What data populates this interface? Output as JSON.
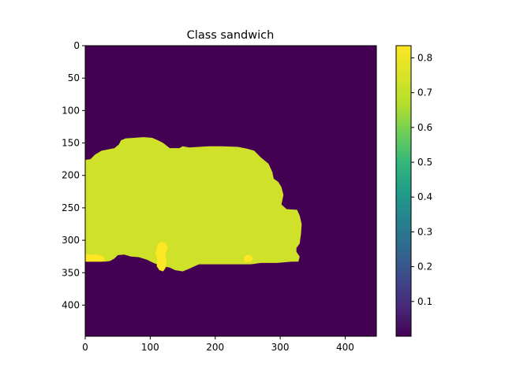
{
  "chart_data": {
    "type": "heatmap",
    "title": "Class sandwich",
    "xlabel": "",
    "ylabel": "",
    "x_range": [
      0,
      448
    ],
    "y_range": [
      0,
      448
    ],
    "y_inverted": true,
    "x_ticks": [
      0,
      100,
      200,
      300,
      400
    ],
    "y_ticks": [
      0,
      50,
      100,
      150,
      200,
      250,
      300,
      350,
      400
    ],
    "grid": false,
    "colormap": "viridis",
    "colorbar": {
      "range": [
        0.0,
        0.835
      ],
      "ticks": [
        0.1,
        0.2,
        0.3,
        0.4,
        0.5,
        0.6,
        0.7,
        0.8
      ],
      "tick_labels": [
        "0.1",
        "0.2",
        "0.3",
        "0.4",
        "0.5",
        "0.6",
        "0.7",
        "0.8"
      ]
    },
    "background_value": 0.0,
    "regions": [
      {
        "name": "sandwich-region",
        "value": 0.73,
        "polygon": [
          [
            0,
            176
          ],
          [
            8,
            175
          ],
          [
            15,
            168
          ],
          [
            25,
            162
          ],
          [
            35,
            160
          ],
          [
            45,
            158
          ],
          [
            52,
            152
          ],
          [
            55,
            146
          ],
          [
            62,
            143
          ],
          [
            75,
            142
          ],
          [
            90,
            141
          ],
          [
            103,
            142
          ],
          [
            112,
            146
          ],
          [
            120,
            150
          ],
          [
            130,
            158
          ],
          [
            145,
            158
          ],
          [
            150,
            155
          ],
          [
            160,
            157
          ],
          [
            175,
            156
          ],
          [
            190,
            155
          ],
          [
            210,
            155
          ],
          [
            235,
            156
          ],
          [
            250,
            159
          ],
          [
            260,
            162
          ],
          [
            270,
            172
          ],
          [
            282,
            182
          ],
          [
            288,
            195
          ],
          [
            290,
            205
          ],
          [
            297,
            210
          ],
          [
            302,
            218
          ],
          [
            305,
            230
          ],
          [
            302,
            245
          ],
          [
            310,
            252
          ],
          [
            326,
            253
          ],
          [
            330,
            262
          ],
          [
            333,
            275
          ],
          [
            332,
            290
          ],
          [
            330,
            305
          ],
          [
            325,
            312
          ],
          [
            325,
            318
          ],
          [
            330,
            325
          ],
          [
            328,
            333
          ],
          [
            318,
            333
          ],
          [
            295,
            335
          ],
          [
            270,
            335
          ],
          [
            255,
            337
          ],
          [
            240,
            337
          ],
          [
            220,
            337
          ],
          [
            200,
            337
          ],
          [
            175,
            337
          ],
          [
            160,
            344
          ],
          [
            150,
            348
          ],
          [
            138,
            346
          ],
          [
            130,
            342
          ],
          [
            118,
            340
          ],
          [
            105,
            335
          ],
          [
            95,
            330
          ],
          [
            82,
            326
          ],
          [
            70,
            325
          ],
          [
            60,
            322
          ],
          [
            50,
            323
          ],
          [
            45,
            328
          ],
          [
            38,
            332
          ],
          [
            30,
            333
          ],
          [
            15,
            333
          ],
          [
            0,
            333
          ]
        ]
      },
      {
        "name": "yellow-region-left",
        "value": 0.835,
        "polygon": [
          [
            0,
            322
          ],
          [
            18,
            322
          ],
          [
            28,
            325
          ],
          [
            30,
            331
          ],
          [
            25,
            333
          ],
          [
            0,
            333
          ]
        ]
      },
      {
        "name": "yellow-region-center",
        "value": 0.835,
        "polygon": [
          [
            112,
            306
          ],
          [
            118,
            302
          ],
          [
            124,
            304
          ],
          [
            127,
            312
          ],
          [
            123,
            322
          ],
          [
            125,
            332
          ],
          [
            124,
            342
          ],
          [
            120,
            348
          ],
          [
            114,
            346
          ],
          [
            110,
            340
          ],
          [
            111,
            330
          ],
          [
            108,
            320
          ],
          [
            110,
            312
          ]
        ]
      },
      {
        "name": "yellow-region-right",
        "value": 0.835,
        "polygon": [
          [
            244,
            327
          ],
          [
            248,
            323
          ],
          [
            255,
            323
          ],
          [
            258,
            328
          ],
          [
            255,
            333
          ],
          [
            246,
            334
          ]
        ]
      }
    ]
  }
}
